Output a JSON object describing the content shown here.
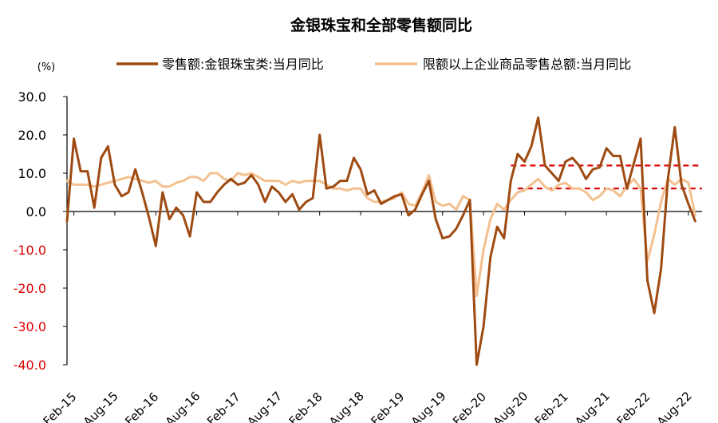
{
  "chart_data": {
    "type": "line",
    "title": "金银珠宝和全部零售额同比",
    "unit_label": "(%)",
    "ylim": [
      -40,
      30
    ],
    "yticks": [
      "30.0",
      "20.0",
      "10.0",
      "0.0",
      "-10.0",
      "-20.0",
      "-30.0",
      "-40.0"
    ],
    "ytick_values": [
      30,
      20,
      10,
      0,
      -10,
      -20,
      -30,
      -40
    ],
    "xticks": [
      "Feb-15",
      "Aug-15",
      "Feb-16",
      "Aug-16",
      "Feb-17",
      "Aug-17",
      "Feb-18",
      "Aug-18",
      "Feb-19",
      "Aug-19",
      "Feb-20",
      "Aug-20",
      "Feb-21",
      "Aug-21",
      "Feb-22",
      "Aug-22"
    ],
    "x_start": "Jan-15",
    "x_end": "Oct-22",
    "series": [
      {
        "name": "零售额:金银珠宝类:当月同比",
        "color": "#9e4a12",
        "values": [
          -2.5,
          19,
          10.5,
          10.5,
          1,
          14,
          17,
          7,
          4,
          5,
          11,
          5,
          -1.5,
          -9,
          5,
          -2,
          1,
          -1,
          -6.5,
          5,
          2.5,
          2.5,
          5,
          7,
          8.5,
          7,
          7.5,
          9.5,
          7,
          2.5,
          6.5,
          5,
          2.5,
          4.5,
          0.5,
          2.5,
          3.5,
          20,
          6,
          6.5,
          8,
          8,
          14,
          11,
          4.5,
          5.5,
          2,
          3,
          4,
          4.5,
          -1,
          0.5,
          4.5,
          8,
          -2,
          -7,
          -6.5,
          -4.5,
          -1,
          3,
          -40,
          -30,
          -12,
          -4,
          -7,
          8,
          15,
          13,
          17,
          24.5,
          12,
          10,
          8,
          13,
          14,
          12,
          8.5,
          11,
          11.5,
          16.5,
          14.5,
          14.5,
          6,
          12.5,
          19,
          -18,
          -26.5,
          -15,
          8.5,
          22,
          7,
          2,
          -2.5
        ]
      },
      {
        "name": "限额以上企业商品零售总额:当月同比",
        "color": "#f4c08f",
        "values": [
          8,
          7,
          7,
          7,
          6.5,
          7,
          7.5,
          8,
          8.5,
          9,
          8.5,
          8,
          7.5,
          8,
          6.5,
          6.5,
          7.5,
          8,
          9,
          9,
          8,
          10,
          10,
          8.5,
          8,
          10,
          9.5,
          10,
          9,
          8,
          8,
          8,
          7,
          8,
          7.5,
          8,
          8,
          8,
          7,
          6,
          6,
          5.5,
          6,
          6,
          3.5,
          2.5,
          2.5,
          3,
          3.5,
          5,
          2,
          1.5,
          5,
          9.5,
          2.5,
          1.5,
          2,
          0.5,
          4,
          3,
          -22,
          -10,
          -2,
          2,
          0.5,
          3,
          5,
          5.5,
          7,
          8.5,
          6.5,
          5.5,
          7,
          7.5,
          6,
          6,
          5,
          3,
          4,
          6,
          5.5,
          4,
          6.5,
          8.5,
          6,
          -13,
          -6,
          2.5,
          8.5,
          7,
          8.5,
          7.5,
          -1
        ]
      }
    ],
    "reference_lines": [
      {
        "value": 12,
        "color": "#dd0000",
        "style": "dashed",
        "from": "Jun-20",
        "to": "Oct-22"
      },
      {
        "value": 6,
        "color": "#dd0000",
        "style": "dashed",
        "from": "Jul-20",
        "to": "Oct-22"
      }
    ],
    "negative_tick_color": "#dd0000",
    "legend_position": "top",
    "grid": false
  }
}
